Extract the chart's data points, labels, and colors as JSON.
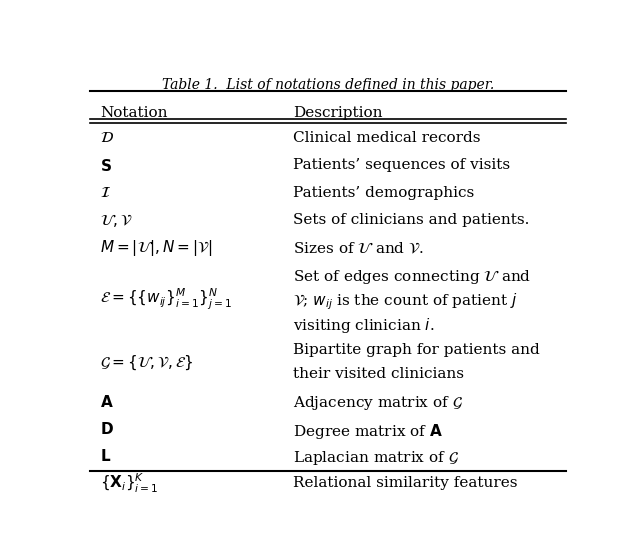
{
  "title": "Table 1.  List of notations defined in this paper.",
  "col1_header": "Notation",
  "col2_header": "Description",
  "rows": [
    {
      "notation": "$\\mathcal{D}$",
      "description": [
        "Clinical medical records"
      ]
    },
    {
      "notation": "$\\mathbf{S}$",
      "description": [
        "Patients’ sequences of visits"
      ]
    },
    {
      "notation": "$\\mathcal{I}$",
      "description": [
        "Patients’ demographics"
      ]
    },
    {
      "notation": "$\\mathcal{U}, \\mathcal{V}$",
      "description": [
        "Sets of clinicians and patients."
      ]
    },
    {
      "notation": "$M = |\\mathcal{U}|, N = |\\mathcal{V}|$",
      "description": [
        "Sizes of $\\mathcal{U}$ and $\\mathcal{V}$."
      ]
    },
    {
      "notation": "$\\mathcal{E} = \\{\\{w_{ij}\\}_{i=1}^{M}\\}_{j=1}^{N}$",
      "description": [
        "Set of edges connecting $\\mathcal{U}$ and",
        "$\\mathcal{V}$; $w_{ij}$ is the count of patient $j$",
        "visiting clinician $i$."
      ]
    },
    {
      "notation": "$\\mathcal{G} = \\{\\mathcal{U}, \\mathcal{V}, \\mathcal{E}\\}$",
      "description": [
        "Bipartite graph for patients and",
        "their visited clinicians"
      ]
    },
    {
      "notation": "$\\mathbf{A}$",
      "description": [
        "Adjacency matrix of $\\mathcal{G}$"
      ]
    },
    {
      "notation": "$\\mathbf{D}$",
      "description": [
        "Degree matrix of $\\mathbf{A}$"
      ]
    },
    {
      "notation": "$\\mathbf{L}$",
      "description": [
        "Laplacian matrix of $\\mathcal{G}$"
      ]
    },
    {
      "notation": "$\\{\\mathbf{X}_i\\}_{i=1}^{K}$",
      "description": [
        "Relational similarity features"
      ]
    }
  ],
  "background_color": "#ffffff",
  "text_color": "#000000",
  "figsize": [
    6.4,
    5.38
  ],
  "dpi": 100
}
